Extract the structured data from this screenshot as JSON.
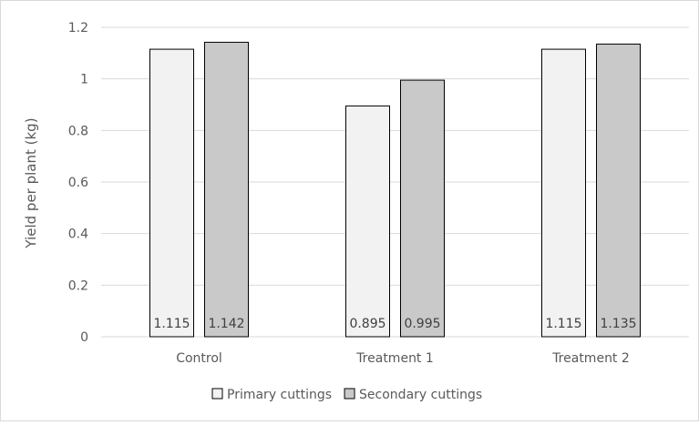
{
  "chart_data": {
    "type": "bar",
    "title": "",
    "xlabel": "",
    "ylabel": "Yield per plant (kg)",
    "categories": [
      "Control",
      "Treatment 1",
      "Treatment 2"
    ],
    "series": [
      {
        "name": "Primary cuttings",
        "values": [
          1.115,
          0.895,
          1.115
        ],
        "color": "#f2f2f2",
        "labels": [
          "1.115",
          "0.895",
          "1.115"
        ]
      },
      {
        "name": "Secondary cuttings",
        "values": [
          1.142,
          0.995,
          1.135
        ],
        "color": "#c9c9c9",
        "labels": [
          "1.142",
          "0.995",
          "1.135"
        ]
      }
    ],
    "ylim": [
      0,
      1.2
    ],
    "yticks": [
      0,
      0.2,
      0.4,
      0.6,
      0.8,
      1,
      1.2
    ],
    "ytick_labels": [
      "0",
      "0.2",
      "0.4",
      "0.6",
      "0.8",
      "1",
      "1.2"
    ],
    "grid": true,
    "legend_position": "bottom",
    "bar_outline_color": "#000000",
    "gridline_color": "#d9d9d9"
  }
}
